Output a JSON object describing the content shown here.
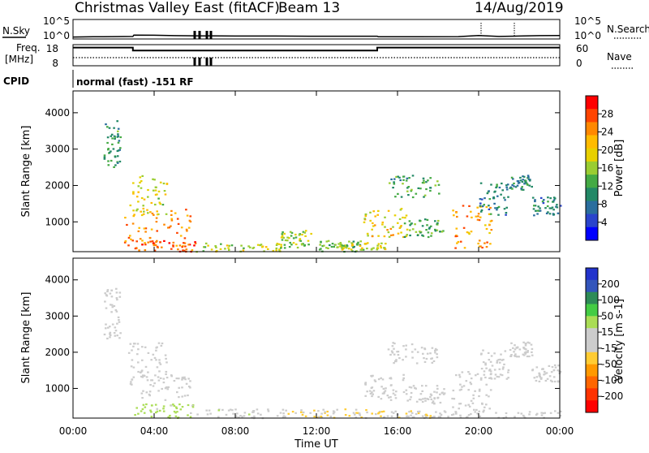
{
  "header": {
    "title": "Christmas Valley East (fitACF)",
    "beam": "Beam 13",
    "date": "14/Aug/2019"
  },
  "strip_panels": {
    "nsky_label": "N.Sky",
    "nsky_ticks": [
      "10^5",
      "10^0"
    ],
    "nsearch_label": "N.Search",
    "nsearch_ticks": [
      "10^5",
      "10^0"
    ],
    "freq_label": "Freq.",
    "freq_unit": "[MHz]",
    "freq_ticks": [
      "18",
      "8"
    ],
    "nave_label": "Nave",
    "nave_ticks": [
      "60",
      "0"
    ],
    "cpid_label": "CPID",
    "cpid_text": "normal (fast) -151 RF"
  },
  "x_axis": {
    "label": "Time UT",
    "ticks": [
      "00:00",
      "04:00",
      "08:00",
      "12:00",
      "16:00",
      "20:00",
      "00:00"
    ]
  },
  "power_colorbar": {
    "label": "Power [dB]",
    "ticks": [
      "28",
      "24",
      "20",
      "16",
      "12",
      "8",
      "4"
    ],
    "colors": [
      "#ff0000",
      "#ff4400",
      "#ff8800",
      "#ffbb00",
      "#e8d000",
      "#9acd32",
      "#44aa44",
      "#228866",
      "#2a6e9e",
      "#2a44cc",
      "#0000ff"
    ]
  },
  "velocity_colorbar": {
    "label": "Velocity [m s-1]",
    "ticks": [
      "200",
      "100",
      "50",
      "15",
      "-15",
      "-50",
      "-100",
      "-200"
    ],
    "colors": [
      "#2233cc",
      "#3355bb",
      "#2e8b57",
      "#44cc44",
      "#aadd55",
      "#cccccc",
      "#cccccc",
      "#ffcc33",
      "#ff9900",
      "#ff6600",
      "#ff3300",
      "#ff0000"
    ]
  },
  "chart_data": [
    {
      "type": "line",
      "name": "sky-noise-panel",
      "y_scale": "log",
      "ylim": [
        1,
        100000
      ],
      "x": [
        0,
        1,
        2,
        2.95,
        3.0,
        4,
        5,
        6,
        8,
        10,
        12,
        14,
        15,
        15.05,
        17,
        19,
        20,
        21,
        22,
        23,
        24
      ],
      "y_log10": [
        0.4,
        0.45,
        0.5,
        0.55,
        0.9,
        0.85,
        0.75,
        0.7,
        0.65,
        0.65,
        0.6,
        0.6,
        0.6,
        0.45,
        0.45,
        0.5,
        0.8,
        0.55,
        0.65,
        0.75,
        0.8
      ]
    },
    {
      "type": "line",
      "name": "frequency-panel",
      "ylim": [
        8,
        18
      ],
      "x": [
        0,
        2.95,
        2.95,
        15.0,
        15.0,
        24
      ],
      "y": [
        16.6,
        16.6,
        15.2,
        15.2,
        16.6,
        16.6
      ]
    },
    {
      "type": "heatmap",
      "name": "power",
      "xlabel": "Time UT",
      "ylabel": "Slant Range [km]",
      "xlim": [
        0,
        24
      ],
      "ylim": [
        180,
        4600
      ],
      "yticks": [
        1000,
        2000,
        3000,
        4000
      ],
      "value_label": "Power [dB]",
      "value_range": [
        0,
        32
      ],
      "regions": [
        {
          "t": [
            1.5,
            2.3
          ],
          "r": [
            2400,
            3800
          ],
          "v": 11
        },
        {
          "t": [
            2.7,
            4.6
          ],
          "r": [
            1200,
            2300
          ],
          "v": 18
        },
        {
          "t": [
            2.5,
            5.8
          ],
          "r": [
            350,
            1400
          ],
          "v": 24
        },
        {
          "t": [
            3.0,
            6.0
          ],
          "r": [
            200,
            500
          ],
          "v": 27
        },
        {
          "t": [
            6.0,
            10.5
          ],
          "r": [
            200,
            450
          ],
          "v": 17
        },
        {
          "t": [
            10.2,
            11.8
          ],
          "r": [
            300,
            800
          ],
          "v": 16
        },
        {
          "t": [
            12.0,
            14.2
          ],
          "r": [
            200,
            500
          ],
          "v": 14
        },
        {
          "t": [
            13.0,
            15.5
          ],
          "r": [
            200,
            450
          ],
          "v": 18
        },
        {
          "t": [
            14.3,
            16.5
          ],
          "r": [
            600,
            1400
          ],
          "v": 20
        },
        {
          "t": [
            15.5,
            18.0
          ],
          "r": [
            1700,
            2300
          ],
          "v": 12
        },
        {
          "t": [
            16.3,
            18.3
          ],
          "r": [
            600,
            1100
          ],
          "v": 13
        },
        {
          "t": [
            18.6,
            20.6
          ],
          "r": [
            300,
            1500
          ],
          "v": 24
        },
        {
          "t": [
            20.0,
            21.5
          ],
          "r": [
            1200,
            2100
          ],
          "v": 9
        },
        {
          "t": [
            21.5,
            22.6
          ],
          "r": [
            1900,
            2300
          ],
          "v": 10
        },
        {
          "t": [
            22.6,
            24.0
          ],
          "r": [
            1200,
            1700
          ],
          "v": 9
        }
      ]
    },
    {
      "type": "heatmap",
      "name": "velocity",
      "xlabel": "Time UT",
      "ylabel": "Slant Range [km]",
      "xlim": [
        0,
        24
      ],
      "ylim": [
        180,
        4600
      ],
      "yticks": [
        1000,
        2000,
        3000,
        4000
      ],
      "value_label": "Velocity [m s-1]",
      "value_range": [
        -250,
        250
      ],
      "regions": [
        {
          "t": [
            1.5,
            2.3
          ],
          "r": [
            2400,
            3800
          ],
          "v": 0
        },
        {
          "t": [
            2.7,
            4.6
          ],
          "r": [
            1200,
            2300
          ],
          "v": 0
        },
        {
          "t": [
            2.5,
            5.8
          ],
          "r": [
            700,
            1400
          ],
          "v": 5
        },
        {
          "t": [
            3.0,
            6.0
          ],
          "r": [
            200,
            600
          ],
          "v": 60
        },
        {
          "t": [
            6.0,
            10.5
          ],
          "r": [
            200,
            450
          ],
          "v": 25
        },
        {
          "t": [
            10.5,
            15.0
          ],
          "r": [
            200,
            450
          ],
          "v": -40
        },
        {
          "t": [
            15.0,
            18.0
          ],
          "r": [
            200,
            400
          ],
          "v": -30
        },
        {
          "t": [
            14.3,
            16.5
          ],
          "r": [
            700,
            1400
          ],
          "v": 0
        },
        {
          "t": [
            15.5,
            18.0
          ],
          "r": [
            1700,
            2300
          ],
          "v": 0
        },
        {
          "t": [
            16.3,
            18.3
          ],
          "r": [
            600,
            1100
          ],
          "v": 0
        },
        {
          "t": [
            18.6,
            20.6
          ],
          "r": [
            400,
            1500
          ],
          "v": 0
        },
        {
          "t": [
            20.0,
            21.5
          ],
          "r": [
            1200,
            2100
          ],
          "v": 0
        },
        {
          "t": [
            21.5,
            22.6
          ],
          "r": [
            1900,
            2300
          ],
          "v": 0
        },
        {
          "t": [
            22.6,
            24.0
          ],
          "r": [
            1200,
            1700
          ],
          "v": 0
        },
        {
          "t": [
            18.0,
            24.0
          ],
          "r": [
            200,
            400
          ],
          "v": -20
        }
      ]
    }
  ]
}
